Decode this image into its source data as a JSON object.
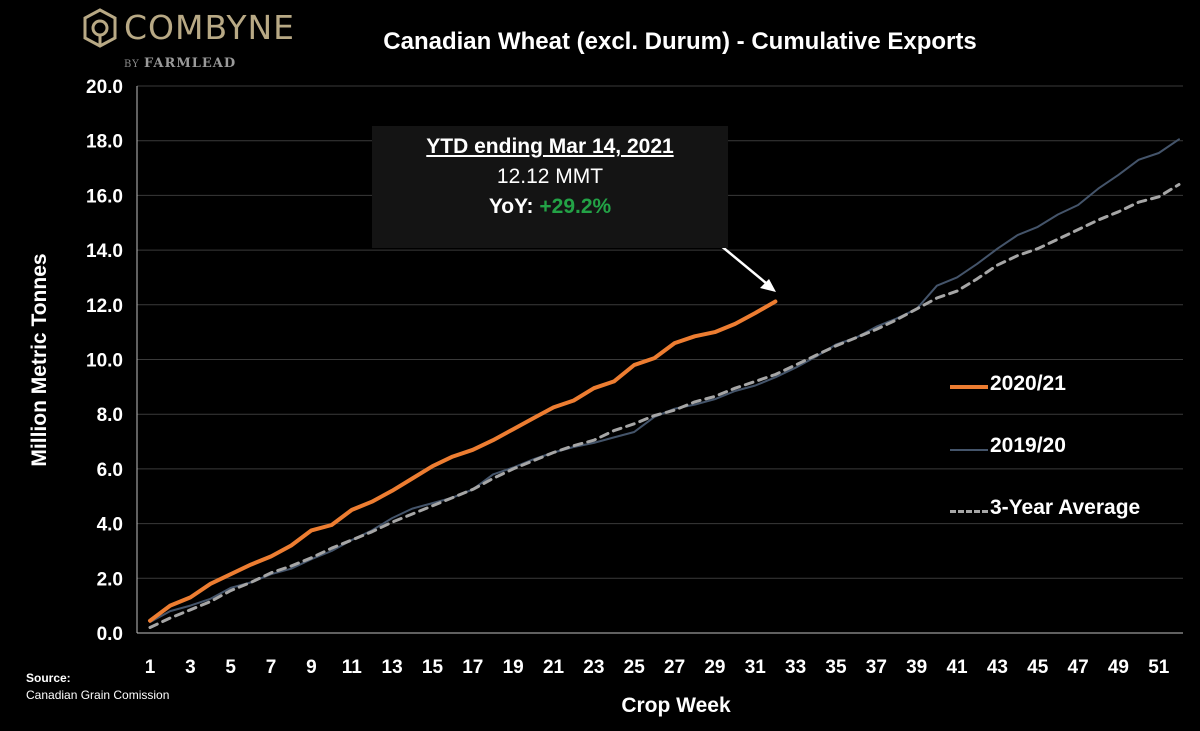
{
  "logo": {
    "name": "COMBYNE",
    "by": "BY",
    "partner": "FARMLEAD"
  },
  "colors": {
    "background": "#000000",
    "series_2020_21": "#ED7D31",
    "series_2019_20": "#44546A",
    "series_avg": "#A6A6A6",
    "positive": "#23A246"
  },
  "annotation": {
    "heading": "YTD ending Mar 14, 2021",
    "value": "12.12 MMT",
    "yoy_label": "YoY: ",
    "yoy_value": "+29.2%"
  },
  "source": {
    "title": "Source:",
    "name": "Canadian Grain Comission"
  },
  "chart_data": {
    "type": "line",
    "title": "Canadian Wheat (excl. Durum) - Cumulative Exports",
    "xlabel": "Crop Week",
    "ylabel": "Million Metric Tonnes",
    "ylim": [
      0,
      20
    ],
    "yticks": [
      "0.0",
      "2.0",
      "4.0",
      "6.0",
      "8.0",
      "10.0",
      "12.0",
      "14.0",
      "16.0",
      "18.0",
      "20.0"
    ],
    "xticks": [
      "1",
      "3",
      "5",
      "7",
      "9",
      "11",
      "13",
      "15",
      "17",
      "19",
      "21",
      "23",
      "25",
      "27",
      "29",
      "31",
      "33",
      "35",
      "37",
      "39",
      "41",
      "43",
      "45",
      "47",
      "49",
      "51"
    ],
    "xlim": [
      1,
      52
    ],
    "grid": "horizontal",
    "legend": "right",
    "series": [
      {
        "name": "2020/21",
        "style": "solid",
        "x": [
          1,
          2,
          3,
          4,
          5,
          6,
          7,
          8,
          9,
          10,
          11,
          12,
          13,
          14,
          15,
          16,
          17,
          18,
          19,
          20,
          21,
          22,
          23,
          24,
          25,
          26,
          27,
          28,
          29,
          30,
          31,
          32
        ],
        "values": [
          0.45,
          1.0,
          1.3,
          1.8,
          2.15,
          2.5,
          2.8,
          3.2,
          3.75,
          3.95,
          4.5,
          4.8,
          5.2,
          5.65,
          6.1,
          6.45,
          6.7,
          7.05,
          7.45,
          7.85,
          8.25,
          8.5,
          8.95,
          9.2,
          9.8,
          10.05,
          10.6,
          10.85,
          11.0,
          11.3,
          11.7,
          12.12
        ]
      },
      {
        "name": "2019/20",
        "style": "solid",
        "x": [
          1,
          2,
          3,
          4,
          5,
          6,
          7,
          8,
          9,
          10,
          11,
          12,
          13,
          14,
          15,
          16,
          17,
          18,
          19,
          20,
          21,
          22,
          23,
          24,
          25,
          26,
          27,
          28,
          29,
          30,
          31,
          32,
          33,
          34,
          35,
          36,
          37,
          38,
          39,
          40,
          41,
          42,
          43,
          44,
          45,
          46,
          47,
          48,
          49,
          50,
          51,
          52
        ],
        "values": [
          0.4,
          0.8,
          1.0,
          1.25,
          1.65,
          1.85,
          2.15,
          2.35,
          2.7,
          3.0,
          3.4,
          3.75,
          4.2,
          4.55,
          4.75,
          4.95,
          5.25,
          5.8,
          6.05,
          6.35,
          6.6,
          6.8,
          6.95,
          7.15,
          7.35,
          7.9,
          8.2,
          8.35,
          8.55,
          8.85,
          9.05,
          9.35,
          9.7,
          10.1,
          10.55,
          10.8,
          11.2,
          11.5,
          11.85,
          12.7,
          13.0,
          13.5,
          14.05,
          14.55,
          14.85,
          15.3,
          15.65,
          16.25,
          16.75,
          17.3,
          17.55,
          18.05
        ]
      },
      {
        "name": "3-Year Average",
        "style": "dashed",
        "x": [
          1,
          2,
          3,
          4,
          5,
          6,
          7,
          8,
          9,
          10,
          11,
          12,
          13,
          14,
          15,
          16,
          17,
          18,
          19,
          20,
          21,
          22,
          23,
          24,
          25,
          26,
          27,
          28,
          29,
          30,
          31,
          32,
          33,
          34,
          35,
          36,
          37,
          38,
          39,
          40,
          41,
          42,
          43,
          44,
          45,
          46,
          47,
          48,
          49,
          50,
          51,
          52
        ],
        "values": [
          0.2,
          0.55,
          0.85,
          1.15,
          1.55,
          1.85,
          2.2,
          2.45,
          2.75,
          3.1,
          3.4,
          3.7,
          4.05,
          4.35,
          4.65,
          4.95,
          5.25,
          5.65,
          6.0,
          6.3,
          6.6,
          6.85,
          7.05,
          7.4,
          7.65,
          7.95,
          8.15,
          8.45,
          8.65,
          8.95,
          9.2,
          9.45,
          9.8,
          10.15,
          10.5,
          10.8,
          11.1,
          11.45,
          11.85,
          12.25,
          12.5,
          12.95,
          13.45,
          13.8,
          14.05,
          14.4,
          14.75,
          15.1,
          15.4,
          15.75,
          15.95,
          16.4
        ]
      }
    ]
  }
}
